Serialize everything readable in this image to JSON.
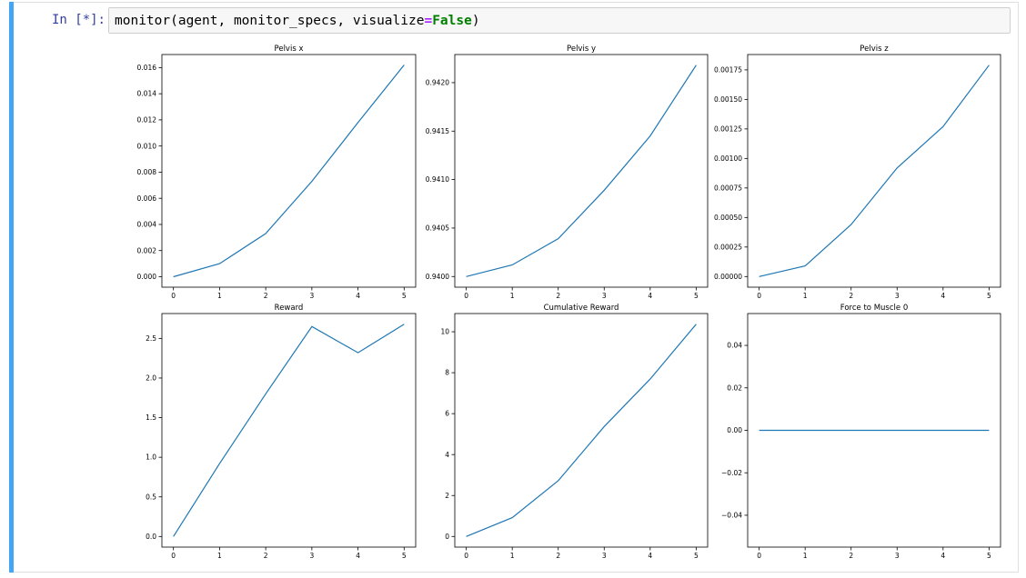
{
  "notebook": {
    "prompt": "In [*]:",
    "code": {
      "func": "monitor(agent, monitor_specs, visualize",
      "op": "=",
      "kw": "False",
      "close": ")"
    }
  },
  "colors": {
    "line": "#1f77b4",
    "cell_bar": "#42a5f5",
    "prompt": "#303f9f"
  },
  "chart_data": [
    {
      "type": "line",
      "title": "Pelvis x",
      "x": [
        0,
        1,
        2,
        3,
        4,
        5
      ],
      "values": [
        0.0,
        0.001,
        0.0033,
        0.0073,
        0.0118,
        0.0162
      ],
      "xticks": [
        "0",
        "1",
        "2",
        "3",
        "4",
        "5"
      ],
      "yticks": [
        0,
        0.002,
        0.004,
        0.006,
        0.008,
        0.01,
        0.012,
        0.014,
        0.016
      ],
      "ytick_labels": [
        "0.000",
        "0.002",
        "0.004",
        "0.006",
        "0.008",
        "0.010",
        "0.012",
        "0.014",
        "0.016"
      ],
      "xlim": [
        -0.25,
        5.25
      ],
      "ylim": [
        -0.0008,
        0.017
      ]
    },
    {
      "type": "line",
      "title": "Pelvis y",
      "x": [
        0,
        1,
        2,
        3,
        4,
        5
      ],
      "values": [
        0.94,
        0.94012,
        0.94039,
        0.94089,
        0.94145,
        0.94218
      ],
      "xticks": [
        "0",
        "1",
        "2",
        "3",
        "4",
        "5"
      ],
      "yticks": [
        0.94,
        0.9405,
        0.941,
        0.9415,
        0.942
      ],
      "ytick_labels": [
        "0.9400",
        "0.9405",
        "0.9410",
        "0.9415",
        "0.9420"
      ],
      "xlim": [
        -0.25,
        5.25
      ],
      "ylim": [
        0.93989,
        0.94229
      ]
    },
    {
      "type": "line",
      "title": "Pelvis z",
      "x": [
        0,
        1,
        2,
        3,
        4,
        5
      ],
      "values": [
        0.0,
        9e-05,
        0.00044,
        0.00092,
        0.00127,
        0.00179
      ],
      "xticks": [
        "0",
        "1",
        "2",
        "3",
        "4",
        "5"
      ],
      "yticks": [
        0,
        0.00025,
        0.0005,
        0.00075,
        0.001,
        0.00125,
        0.0015,
        0.00175
      ],
      "ytick_labels": [
        "0.00000",
        "0.00025",
        "0.00050",
        "0.00075",
        "0.00100",
        "0.00125",
        "0.00150",
        "0.00175"
      ],
      "xlim": [
        -0.25,
        5.25
      ],
      "ylim": [
        -9e-05,
        0.00188
      ]
    },
    {
      "type": "line",
      "title": "Reward",
      "x": [
        0,
        1,
        2,
        3,
        4,
        5
      ],
      "values": [
        0.0,
        0.92,
        1.8,
        2.65,
        2.32,
        2.68
      ],
      "xticks": [
        "0",
        "1",
        "2",
        "3",
        "4",
        "5"
      ],
      "yticks": [
        0,
        0.5,
        1.0,
        1.5,
        2.0,
        2.5
      ],
      "ytick_labels": [
        "0.0",
        "0.5",
        "1.0",
        "1.5",
        "2.0",
        "2.5"
      ],
      "xlim": [
        -0.25,
        5.25
      ],
      "ylim": [
        -0.134,
        2.814
      ]
    },
    {
      "type": "line",
      "title": "Cumulative Reward",
      "x": [
        0,
        1,
        2,
        3,
        4,
        5
      ],
      "values": [
        0.0,
        0.92,
        2.72,
        5.37,
        7.69,
        10.37
      ],
      "xticks": [
        "0",
        "1",
        "2",
        "3",
        "4",
        "5"
      ],
      "yticks": [
        0,
        2,
        4,
        6,
        8,
        10
      ],
      "ytick_labels": [
        "0",
        "2",
        "4",
        "6",
        "8",
        "10"
      ],
      "xlim": [
        -0.25,
        5.25
      ],
      "ylim": [
        -0.52,
        10.89
      ]
    },
    {
      "type": "line",
      "title": "Force to Muscle 0",
      "x": [
        0,
        1,
        2,
        3,
        4,
        5
      ],
      "values": [
        0,
        0,
        0,
        0,
        0,
        0
      ],
      "xticks": [
        "0",
        "1",
        "2",
        "3",
        "4",
        "5"
      ],
      "yticks": [
        -0.04,
        -0.02,
        0.0,
        0.02,
        0.04
      ],
      "ytick_labels": [
        "−0.04",
        "−0.02",
        "0.00",
        "0.02",
        "0.04"
      ],
      "xlim": [
        -0.25,
        5.25
      ],
      "ylim": [
        -0.055,
        0.055
      ]
    }
  ]
}
